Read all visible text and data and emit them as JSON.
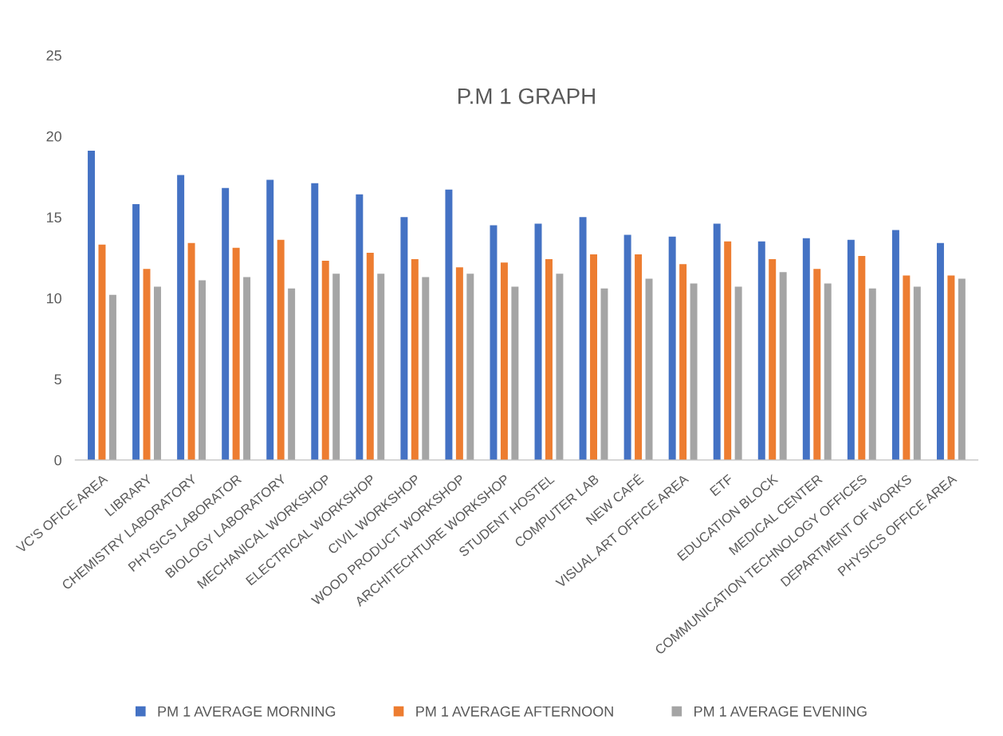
{
  "chart_data": {
    "type": "bar",
    "title": "P.M 1 GRAPH",
    "categories": [
      "VC'S OFICE AREA",
      "LIBRARY",
      "CHEMISTRY LABORATORY",
      "PHYSICS LABORATOR",
      "BIOLOGY LABORATORY",
      "MECHANICAL WORKSHOP",
      "ELECTRICAL WORKSHOP",
      "CIVIL WORKSHOP",
      "WOOD PRODUCT WORKSHOP",
      "ARCHITECHTURE WORKSHOP",
      "STUDENT HOSTEL",
      "COMPUTER LAB",
      "NEW CAFÉ",
      "VISUAL ART OFFICE AREA",
      "ETF",
      "EDUCATION BLOCK",
      "MEDICAL CENTER",
      "COMMUNICATION TECHNOLOGY OFFICES",
      "DEPARTMENT OF WORKS",
      "PHYSICS OFFICE AREA"
    ],
    "series": [
      {
        "name": "PM 1 AVERAGE MORNING",
        "color": "#4472c4",
        "values": [
          19.1,
          15.8,
          17.6,
          16.8,
          17.3,
          17.1,
          16.4,
          15.0,
          16.7,
          14.5,
          14.6,
          15.0,
          13.9,
          13.8,
          14.6,
          13.5,
          13.7,
          13.6,
          14.2,
          13.4
        ]
      },
      {
        "name": "PM 1 AVERAGE AFTERNOON",
        "color": "#ed7d31",
        "values": [
          13.3,
          11.8,
          13.4,
          13.1,
          13.6,
          12.3,
          12.8,
          12.4,
          11.9,
          12.2,
          12.4,
          12.7,
          12.7,
          12.1,
          13.5,
          12.4,
          11.8,
          12.6,
          11.4,
          11.4
        ]
      },
      {
        "name": "PM 1 AVERAGE EVENING",
        "color": "#a5a5a5",
        "values": [
          10.2,
          10.7,
          11.1,
          11.3,
          10.6,
          11.5,
          11.5,
          11.3,
          11.5,
          10.7,
          11.5,
          10.6,
          11.2,
          10.9,
          10.7,
          11.6,
          10.9,
          10.6,
          10.7,
          11.2
        ]
      }
    ],
    "ylim": [
      0,
      25
    ],
    "yticks": [
      0,
      5,
      10,
      15,
      20,
      25
    ],
    "grid": false,
    "legend": "bottom"
  }
}
